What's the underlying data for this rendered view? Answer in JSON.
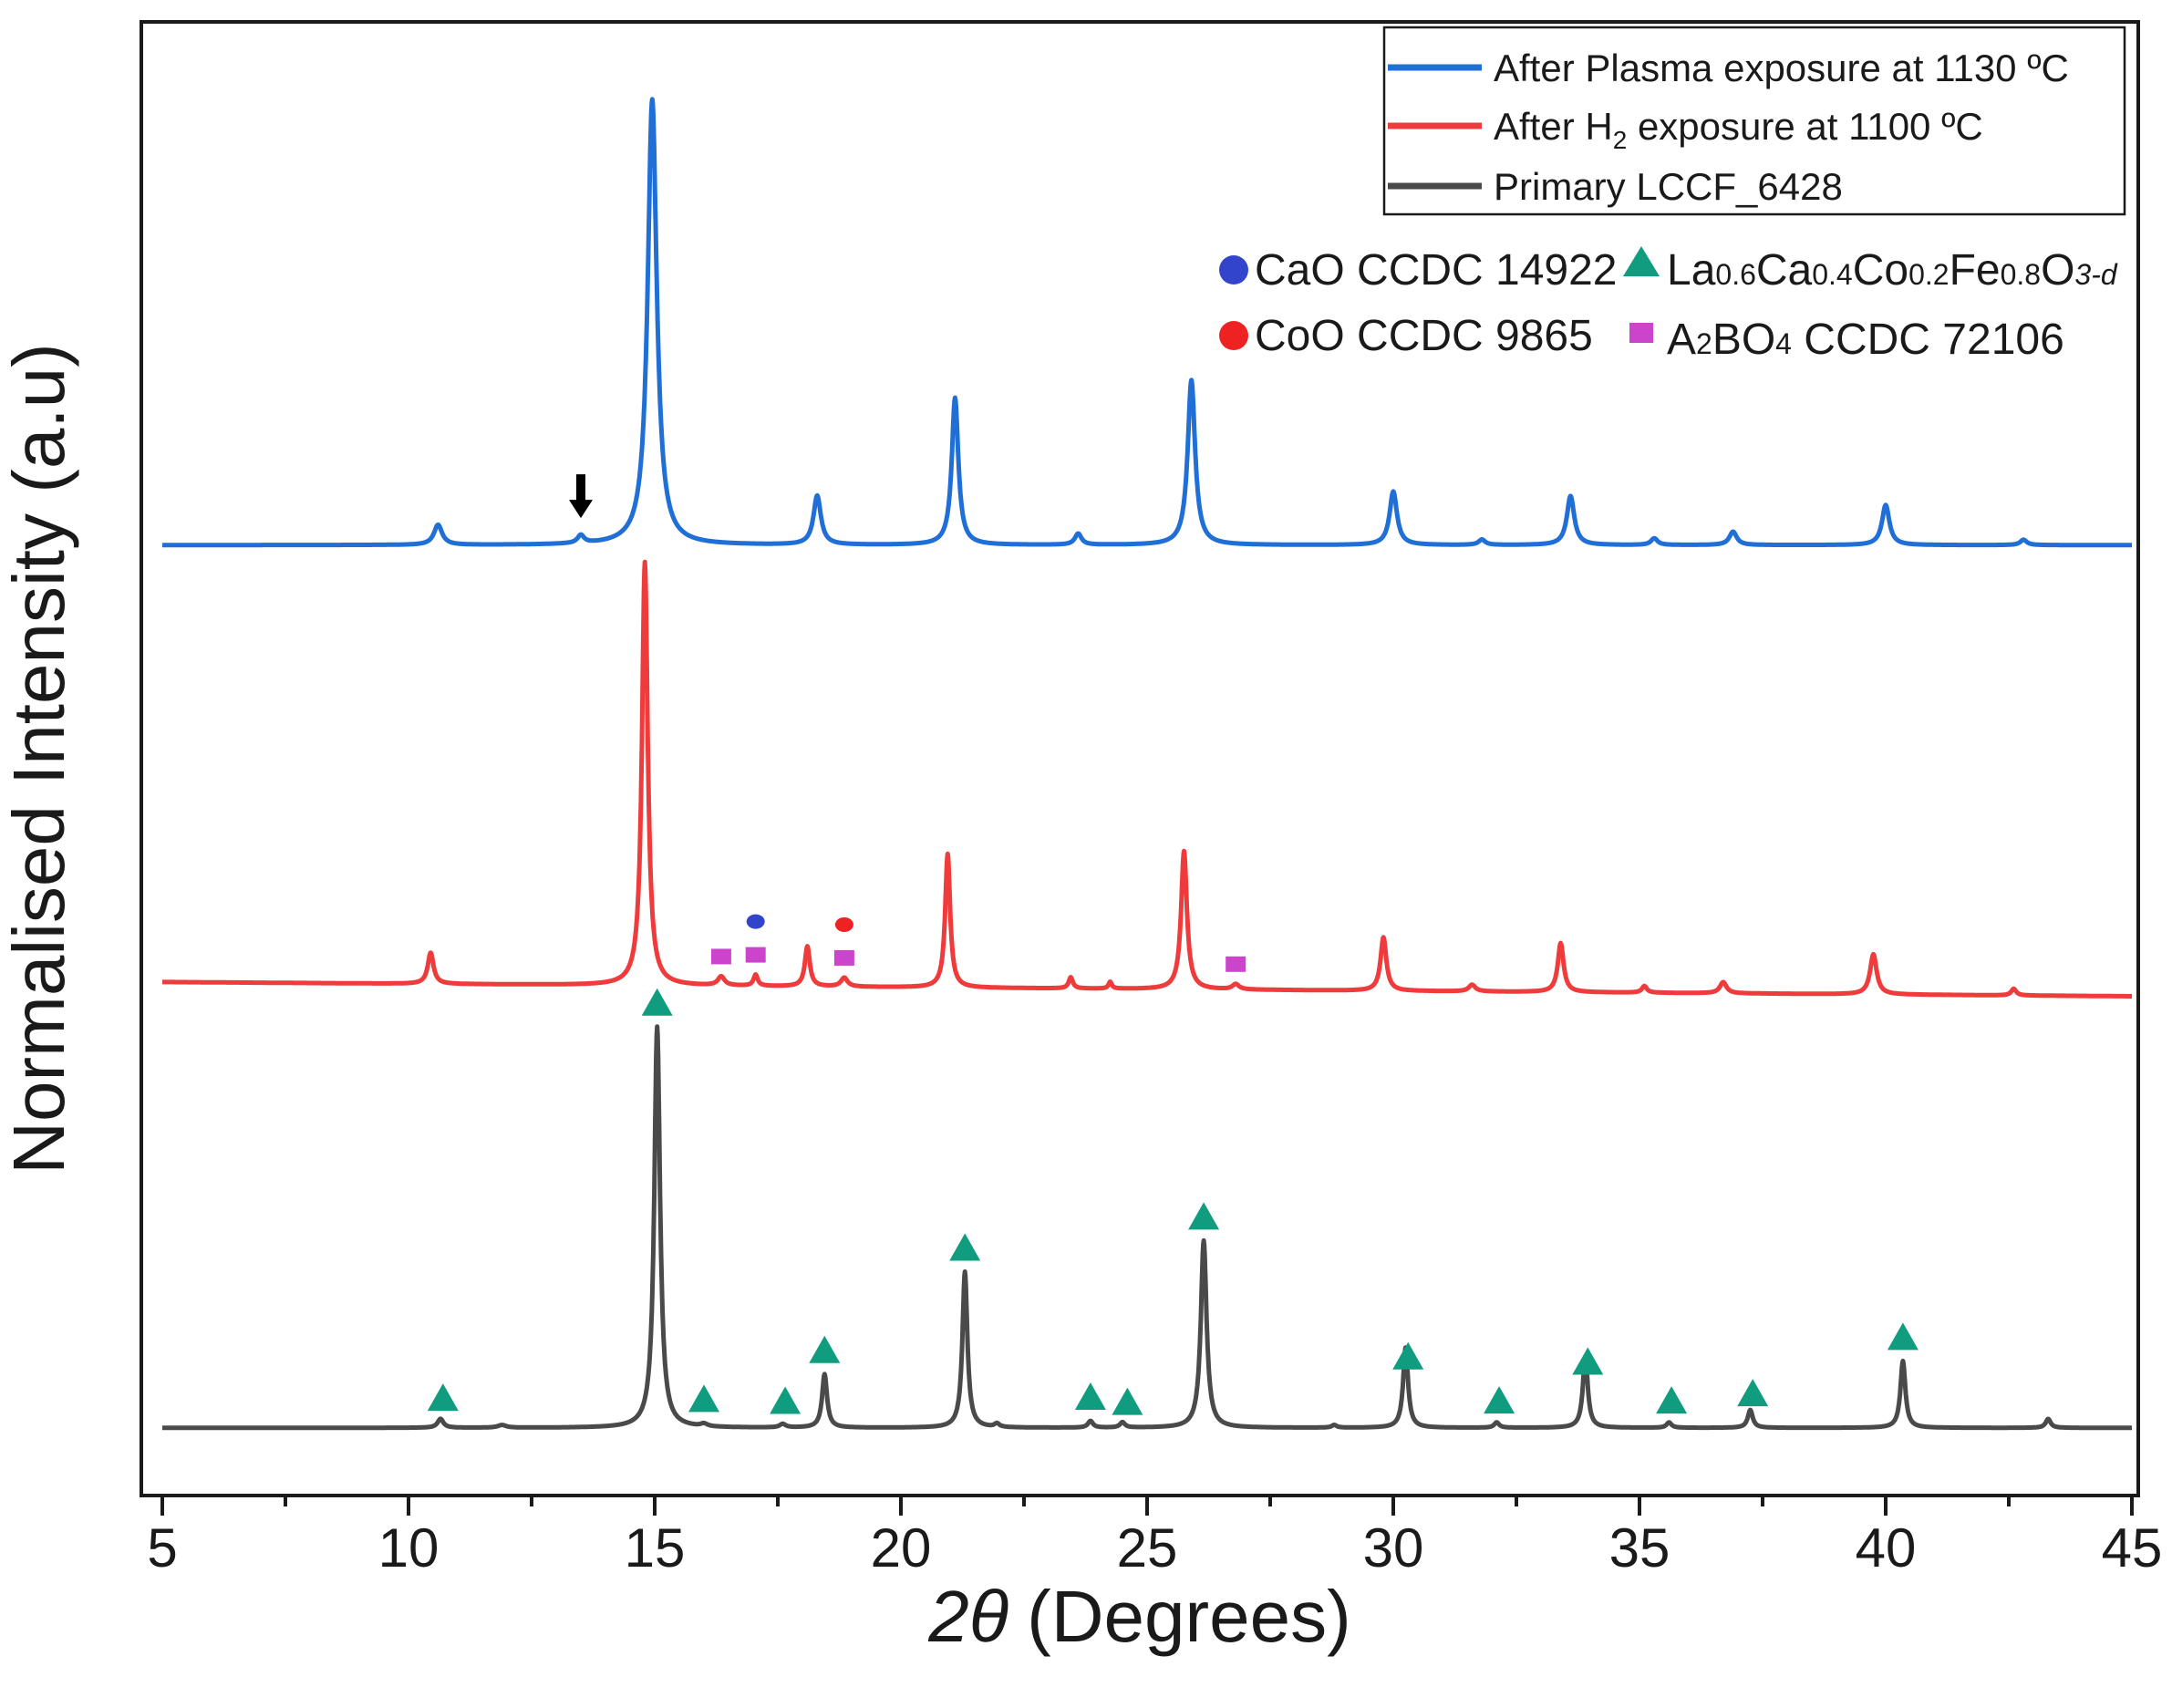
{
  "chart_data": {
    "type": "line",
    "title": "",
    "xlabel": "2θ (Degrees)",
    "xlabel_symbol": "2θ",
    "xlabel_unit": "(Degrees)",
    "ylabel": "Normalised Intensity (a.u)",
    "xlim": [
      5,
      45
    ],
    "xticks": [
      5,
      10,
      15,
      20,
      25,
      30,
      35,
      40,
      45
    ],
    "yticks_shown": false,
    "legend_position": "top-right",
    "series": [
      {
        "key": "plasma",
        "name": "After Plasma exposure at 1130 ºC",
        "color": "#1f6fd6",
        "offset": 2.05,
        "baseline_slope": 0.0,
        "peaks": [
          {
            "x": 10.6,
            "h": 0.045,
            "w": 0.1
          },
          {
            "x": 13.5,
            "h": 0.018,
            "w": 0.08
          },
          {
            "x": 14.95,
            "h": 1.0,
            "w": 0.11
          },
          {
            "x": 18.3,
            "h": 0.11,
            "w": 0.09
          },
          {
            "x": 21.1,
            "h": 0.33,
            "w": 0.08
          },
          {
            "x": 23.6,
            "h": 0.025,
            "w": 0.08
          },
          {
            "x": 25.9,
            "h": 0.37,
            "w": 0.09
          },
          {
            "x": 30.0,
            "h": 0.12,
            "w": 0.09
          },
          {
            "x": 31.8,
            "h": 0.012,
            "w": 0.08
          },
          {
            "x": 33.6,
            "h": 0.11,
            "w": 0.09
          },
          {
            "x": 35.3,
            "h": 0.015,
            "w": 0.08
          },
          {
            "x": 36.9,
            "h": 0.03,
            "w": 0.09
          },
          {
            "x": 40.0,
            "h": 0.09,
            "w": 0.09
          },
          {
            "x": 42.8,
            "h": 0.012,
            "w": 0.08
          }
        ]
      },
      {
        "key": "h2",
        "name": "After H2 exposure at 1100 ºC",
        "name_parts": [
          "After H",
          "2",
          " exposure at 1100 ºC"
        ],
        "color": "#ef3b3b",
        "offset": 1.07,
        "baseline_slope": -0.0008,
        "peaks": [
          {
            "x": 10.45,
            "h": 0.07,
            "w": 0.07
          },
          {
            "x": 14.8,
            "h": 0.95,
            "w": 0.07
          },
          {
            "x": 16.35,
            "h": 0.02,
            "w": 0.08
          },
          {
            "x": 17.05,
            "h": 0.025,
            "w": 0.05
          },
          {
            "x": 18.1,
            "h": 0.09,
            "w": 0.06
          },
          {
            "x": 18.85,
            "h": 0.02,
            "w": 0.08
          },
          {
            "x": 20.95,
            "h": 0.3,
            "w": 0.06
          },
          {
            "x": 23.45,
            "h": 0.025,
            "w": 0.05
          },
          {
            "x": 24.25,
            "h": 0.015,
            "w": 0.04
          },
          {
            "x": 25.75,
            "h": 0.31,
            "w": 0.07
          },
          {
            "x": 26.8,
            "h": 0.012,
            "w": 0.08
          },
          {
            "x": 29.8,
            "h": 0.12,
            "w": 0.07
          },
          {
            "x": 31.6,
            "h": 0.015,
            "w": 0.08
          },
          {
            "x": 33.4,
            "h": 0.11,
            "w": 0.07
          },
          {
            "x": 35.1,
            "h": 0.015,
            "w": 0.06
          },
          {
            "x": 36.7,
            "h": 0.025,
            "w": 0.08
          },
          {
            "x": 39.75,
            "h": 0.09,
            "w": 0.08
          },
          {
            "x": 42.6,
            "h": 0.015,
            "w": 0.06
          }
        ]
      },
      {
        "key": "primary",
        "name": "Primary LCCF_6428",
        "color": "#4a4a4a",
        "offset": 0.07,
        "baseline_slope": 0.0,
        "peaks": [
          {
            "x": 10.65,
            "h": 0.02,
            "w": 0.07
          },
          {
            "x": 11.9,
            "h": 0.006,
            "w": 0.1
          },
          {
            "x": 15.05,
            "h": 0.9,
            "w": 0.07
          },
          {
            "x": 16.0,
            "h": 0.006,
            "w": 0.08
          },
          {
            "x": 17.6,
            "h": 0.008,
            "w": 0.07
          },
          {
            "x": 18.45,
            "h": 0.12,
            "w": 0.06
          },
          {
            "x": 21.3,
            "h": 0.35,
            "w": 0.06
          },
          {
            "x": 21.95,
            "h": 0.008,
            "w": 0.06
          },
          {
            "x": 23.85,
            "h": 0.015,
            "w": 0.06
          },
          {
            "x": 24.5,
            "h": 0.012,
            "w": 0.06
          },
          {
            "x": 26.15,
            "h": 0.42,
            "w": 0.07
          },
          {
            "x": 28.8,
            "h": 0.006,
            "w": 0.06
          },
          {
            "x": 30.25,
            "h": 0.18,
            "w": 0.06
          },
          {
            "x": 32.1,
            "h": 0.012,
            "w": 0.06
          },
          {
            "x": 33.9,
            "h": 0.16,
            "w": 0.06
          },
          {
            "x": 35.6,
            "h": 0.012,
            "w": 0.06
          },
          {
            "x": 37.25,
            "h": 0.04,
            "w": 0.06
          },
          {
            "x": 40.35,
            "h": 0.15,
            "w": 0.06
          },
          {
            "x": 43.3,
            "h": 0.02,
            "w": 0.06
          }
        ]
      }
    ],
    "phase_markers": [
      {
        "name": "CaO CCDC 14922",
        "shape": "circle",
        "color": "#3344cc"
      },
      {
        "name": "La0.6Ca0.4Co0.2Fe0.8O3-d",
        "parts": [
          "La",
          "0.6",
          "Ca",
          "0.4",
          "Co",
          "0.2",
          "Fe",
          "0.8",
          "O",
          "3-d"
        ],
        "shape": "triangle",
        "color": "#109c7e"
      },
      {
        "name": "CoO CCDC 9865",
        "shape": "circle",
        "color": "#ee2222"
      },
      {
        "name": "A2BO4 CCDC 72106",
        "parts": [
          "A",
          "2",
          "BO",
          "4",
          " CCDC 72106"
        ],
        "shape": "square",
        "color": "#cc44cc"
      }
    ],
    "annotations": [
      {
        "type": "arrow-down",
        "x": 13.5,
        "series": "plasma"
      },
      {
        "type": "triangle",
        "series": "primary",
        "x": [
          10.7,
          15.05,
          16.0,
          17.65,
          18.45,
          21.3,
          23.85,
          24.6,
          26.15,
          30.3,
          32.15,
          33.95,
          35.65,
          37.3,
          40.35
        ]
      },
      {
        "type": "square",
        "series": "h2",
        "x": [
          16.35,
          17.05,
          18.85,
          26.8
        ]
      },
      {
        "type": "circle-blue",
        "series": "h2",
        "x": [
          17.05
        ]
      },
      {
        "type": "circle-red",
        "series": "h2",
        "x": [
          18.85
        ]
      }
    ]
  }
}
